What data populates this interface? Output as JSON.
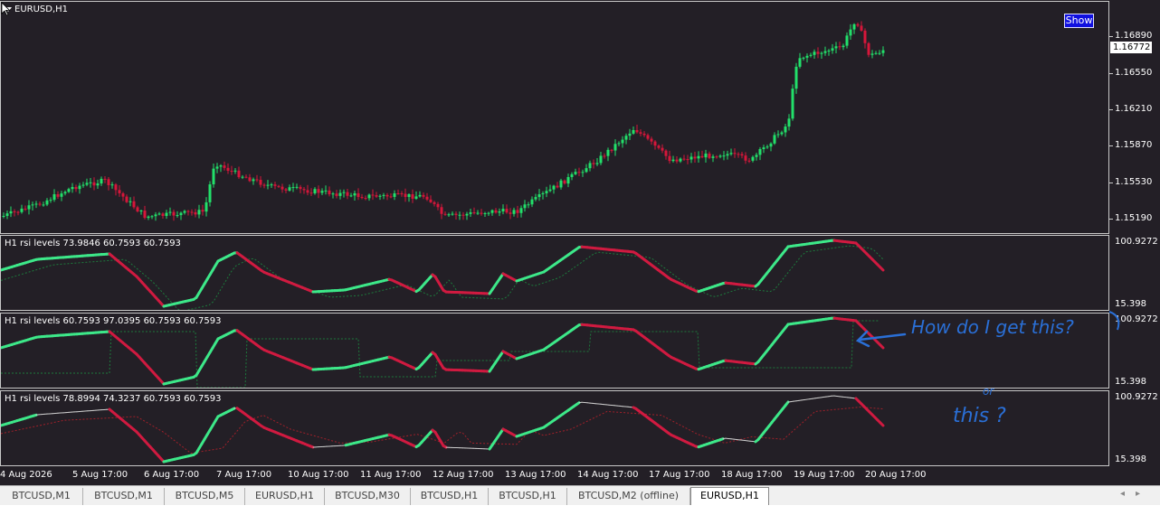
{
  "main_chart": {
    "symbol_label": "EURUSD,H1",
    "show_button": "Show",
    "current_price": "1.16772",
    "price_ticks": [
      "1.16890",
      "1.16550",
      "1.16210",
      "1.15870",
      "1.15530",
      "1.15190"
    ]
  },
  "indicators": [
    {
      "label": "H1  rsi levels  73.9846 60.7593 60.7593",
      "scale_top": "100.9272",
      "scale_bottom": "15.398"
    },
    {
      "label": "H1  rsi levels  60.7593 97.0395 60.7593 60.7593",
      "scale_top": "100.9272",
      "scale_bottom": "15.398"
    },
    {
      "label": "H1  rsi levels  78.8994 74.3237 60.7593 60.7593",
      "scale_top": "100.9272",
      "scale_bottom": "15.398"
    }
  ],
  "time_axis": [
    "4 Aug 2026",
    "5 Aug 17:00",
    "6 Aug 17:00",
    "7 Aug 17:00",
    "10 Aug 17:00",
    "11 Aug 17:00",
    "12 Aug 17:00",
    "13 Aug 17:00",
    "14 Aug 17:00",
    "17 Aug 17:00",
    "18 Aug 17:00",
    "19 Aug 17:00",
    "20 Aug 17:00"
  ],
  "tabs": [
    {
      "label": "BTCUSD,M1",
      "active": false
    },
    {
      "label": "BTCUSD,M1",
      "active": false
    },
    {
      "label": "BTCUSD,M5",
      "active": false
    },
    {
      "label": "EURUSD,H1",
      "active": false
    },
    {
      "label": "BTCUSD,M30",
      "active": false
    },
    {
      "label": "BTCUSD,H1",
      "active": false
    },
    {
      "label": "BTCUSD,H1",
      "active": false
    },
    {
      "label": "BTCUSD,M2 (offline)",
      "active": false
    },
    {
      "label": "EURUSD,H1",
      "active": true
    }
  ],
  "annotations": {
    "question": "How do I get this?",
    "or_word": "or",
    "this_word": "this ?"
  },
  "colors": {
    "background": "#231f26",
    "bull": "#22e06a",
    "bear": "#d6163a",
    "rsi_up": "#3de889",
    "rsi_down": "#d01a40",
    "annotation": "#2a6fd6"
  }
}
